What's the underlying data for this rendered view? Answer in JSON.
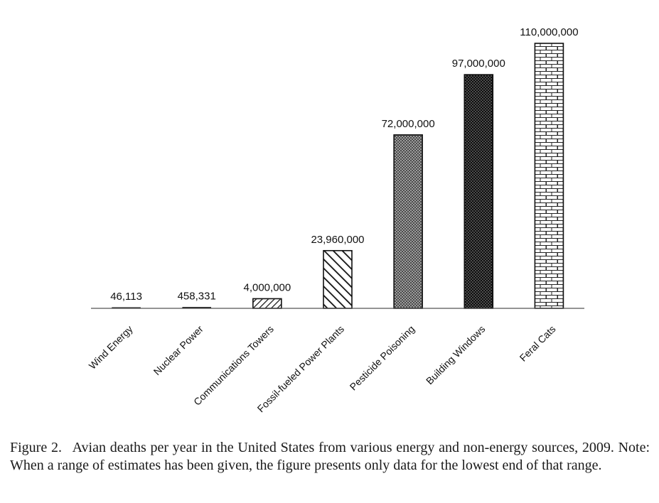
{
  "chart_data": {
    "type": "bar",
    "categories": [
      "Wind Energy",
      "Nuclear Power",
      "Communications Towers",
      "Fossil-fueled Power Plants",
      "Pesticide Poisoning",
      "Building Windows",
      "Feral Cats"
    ],
    "values": [
      46113,
      458331,
      4000000,
      23960000,
      72000000,
      97000000,
      110000000
    ],
    "value_labels": [
      "46,113",
      "458,331",
      "4,000,000",
      "23,960,000",
      "72,000,000",
      "97,000,000",
      "110,000,000"
    ],
    "fill_patterns": [
      "solid",
      "solid",
      "diagonal-hatch",
      "diagonal-hatch-wide",
      "crosshatch-gray",
      "dotted-dark",
      "brick"
    ],
    "title": "",
    "xlabel": "",
    "ylabel": "",
    "ylim": [
      0,
      110000000
    ],
    "grid": false,
    "legend": "none",
    "colors": {
      "bar_stroke": "#111111",
      "axis": "#555555"
    }
  },
  "caption": {
    "figure_number": "Figure 2.",
    "text": "Avian deaths per year in the United States from various energy and non-energy sources, 2009. Note: When a range of estimates has been given, the figure presents only data for the lowest end of that range."
  }
}
